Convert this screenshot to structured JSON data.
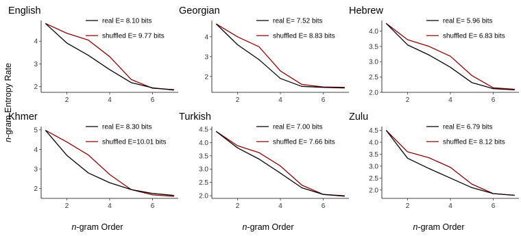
{
  "figure": {
    "ylabel_italic": "n",
    "ylabel_rest": "-gram Entropy Rate",
    "xlabel_italic": "n",
    "xlabel_rest": "-gram Order"
  },
  "chart_data": [
    {
      "type": "line",
      "title": "English",
      "x": [
        1,
        2,
        3,
        4,
        5,
        6,
        7
      ],
      "xticks": [
        2,
        4,
        6
      ],
      "ylim": [
        1.75,
        4.85
      ],
      "yticks": [
        2,
        3,
        4
      ],
      "series": [
        {
          "name": "real E= 8.10 bits",
          "color": "#000000",
          "values": [
            4.78,
            3.92,
            3.38,
            2.75,
            2.18,
            1.95,
            1.85
          ]
        },
        {
          "name": "shuffled E= 9.77 bits",
          "color": "#8b0000",
          "values": [
            4.78,
            4.35,
            4.05,
            3.32,
            2.32,
            1.93,
            1.87
          ]
        }
      ]
    },
    {
      "type": "line",
      "title": "Georgian",
      "x": [
        1,
        2,
        3,
        4,
        5,
        6,
        7
      ],
      "xticks": [
        2,
        4,
        6
      ],
      "ylim": [
        1.2,
        4.75
      ],
      "yticks": [
        2,
        3,
        4
      ],
      "series": [
        {
          "name": "real E= 7.52 bits",
          "color": "#000000",
          "values": [
            4.65,
            3.6,
            2.85,
            1.9,
            1.5,
            1.45,
            1.42
          ]
        },
        {
          "name": "shuffled E= 8.83 bits",
          "color": "#8b0000",
          "values": [
            4.65,
            4.0,
            3.5,
            2.28,
            1.6,
            1.47,
            1.45
          ]
        }
      ]
    },
    {
      "type": "line",
      "title": "Hebrew",
      "x": [
        1,
        2,
        3,
        4,
        5,
        6,
        7
      ],
      "xticks": [
        2,
        4,
        6
      ],
      "ylim": [
        2.0,
        4.3
      ],
      "yticks": [
        2.0,
        2.5,
        3.0,
        3.5,
        4.0
      ],
      "series": [
        {
          "name": "real E= 5.96 bits",
          "color": "#000000",
          "values": [
            4.25,
            3.55,
            3.22,
            2.82,
            2.32,
            2.12,
            2.08
          ]
        },
        {
          "name": "shuffled E= 6.83 bits",
          "color": "#8b0000",
          "values": [
            4.25,
            3.72,
            3.5,
            3.18,
            2.55,
            2.15,
            2.1
          ]
        }
      ]
    },
    {
      "type": "line",
      "title": "Khmer",
      "x": [
        1,
        2,
        3,
        4,
        5,
        6,
        7
      ],
      "xticks": [
        2,
        4,
        6
      ],
      "ylim": [
        1.5,
        5.1
      ],
      "yticks": [
        2,
        3,
        4,
        5
      ],
      "series": [
        {
          "name": "real E= 8.30 bits",
          "color": "#000000",
          "values": [
            4.98,
            3.7,
            2.8,
            2.3,
            1.95,
            1.75,
            1.65
          ]
        },
        {
          "name": "shuffled E=10.01 bits",
          "color": "#8b0000",
          "values": [
            4.98,
            4.38,
            3.72,
            2.72,
            1.95,
            1.68,
            1.6
          ]
        }
      ]
    },
    {
      "type": "line",
      "title": "Turkish",
      "x": [
        1,
        2,
        3,
        4,
        5,
        6,
        7
      ],
      "xticks": [
        2,
        4,
        6
      ],
      "ylim": [
        1.9,
        4.55
      ],
      "yticks": [
        2.0,
        2.5,
        3.0,
        3.5,
        4.0,
        4.5
      ],
      "series": [
        {
          "name": "real E= 7.00 bits",
          "color": "#000000",
          "values": [
            4.42,
            3.8,
            3.38,
            2.85,
            2.3,
            2.05,
            1.98
          ]
        },
        {
          "name": "shuffled E= 7.66 bits",
          "color": "#8b0000",
          "values": [
            4.42,
            3.88,
            3.62,
            3.12,
            2.4,
            2.05,
            2.0
          ]
        }
      ]
    },
    {
      "type": "line",
      "title": "Zulu",
      "x": [
        1,
        2,
        3,
        4,
        5,
        6,
        7
      ],
      "xticks": [
        2,
        4,
        6
      ],
      "ylim": [
        1.65,
        4.6
      ],
      "yticks": [
        2.0,
        2.5,
        3.0,
        3.5,
        4.0,
        4.5
      ],
      "series": [
        {
          "name": "real E= 6.79 bits",
          "color": "#000000",
          "values": [
            4.5,
            3.33,
            2.9,
            2.5,
            2.1,
            1.85,
            1.78
          ]
        },
        {
          "name": "shuffled E= 8.12 bits",
          "color": "#8b0000",
          "values": [
            4.5,
            3.6,
            3.35,
            2.95,
            2.25,
            1.85,
            1.78
          ]
        }
      ]
    }
  ]
}
